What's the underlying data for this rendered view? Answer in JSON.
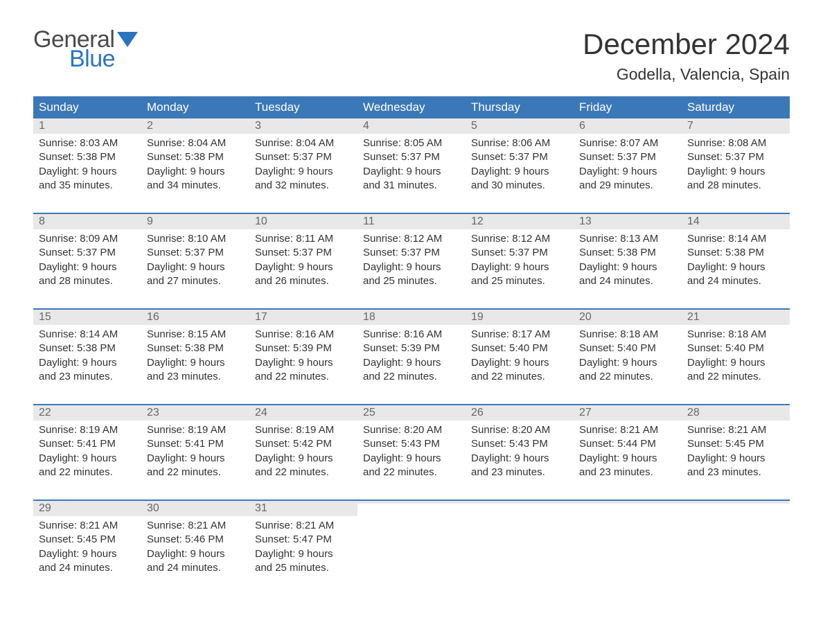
{
  "logo": {
    "word_general": "General",
    "word_blue": "Blue",
    "flag_color": "#2a74bf",
    "general_color": "#4a4a4a"
  },
  "title": {
    "month": "December 2024",
    "location": "Godella, Valencia, Spain"
  },
  "colors": {
    "header_bg": "#3b78b8",
    "header_text": "#ffffff",
    "daynum_bg": "#e8e8e8",
    "daynum_text": "#666666",
    "body_text": "#333333",
    "week_border": "#3b78b8",
    "page_bg": "#ffffff"
  },
  "fonts": {
    "title_size_pt": 32,
    "location_size_pt": 17,
    "dayheader_size_pt": 13,
    "daynum_size_pt": 12,
    "body_size_pt": 11
  },
  "day_names": [
    "Sunday",
    "Monday",
    "Tuesday",
    "Wednesday",
    "Thursday",
    "Friday",
    "Saturday"
  ],
  "weeks": [
    [
      {
        "num": "1",
        "sunrise": "Sunrise: 8:03 AM",
        "sunset": "Sunset: 5:38 PM",
        "d1": "Daylight: 9 hours",
        "d2": "and 35 minutes."
      },
      {
        "num": "2",
        "sunrise": "Sunrise: 8:04 AM",
        "sunset": "Sunset: 5:38 PM",
        "d1": "Daylight: 9 hours",
        "d2": "and 34 minutes."
      },
      {
        "num": "3",
        "sunrise": "Sunrise: 8:04 AM",
        "sunset": "Sunset: 5:37 PM",
        "d1": "Daylight: 9 hours",
        "d2": "and 32 minutes."
      },
      {
        "num": "4",
        "sunrise": "Sunrise: 8:05 AM",
        "sunset": "Sunset: 5:37 PM",
        "d1": "Daylight: 9 hours",
        "d2": "and 31 minutes."
      },
      {
        "num": "5",
        "sunrise": "Sunrise: 8:06 AM",
        "sunset": "Sunset: 5:37 PM",
        "d1": "Daylight: 9 hours",
        "d2": "and 30 minutes."
      },
      {
        "num": "6",
        "sunrise": "Sunrise: 8:07 AM",
        "sunset": "Sunset: 5:37 PM",
        "d1": "Daylight: 9 hours",
        "d2": "and 29 minutes."
      },
      {
        "num": "7",
        "sunrise": "Sunrise: 8:08 AM",
        "sunset": "Sunset: 5:37 PM",
        "d1": "Daylight: 9 hours",
        "d2": "and 28 minutes."
      }
    ],
    [
      {
        "num": "8",
        "sunrise": "Sunrise: 8:09 AM",
        "sunset": "Sunset: 5:37 PM",
        "d1": "Daylight: 9 hours",
        "d2": "and 28 minutes."
      },
      {
        "num": "9",
        "sunrise": "Sunrise: 8:10 AM",
        "sunset": "Sunset: 5:37 PM",
        "d1": "Daylight: 9 hours",
        "d2": "and 27 minutes."
      },
      {
        "num": "10",
        "sunrise": "Sunrise: 8:11 AM",
        "sunset": "Sunset: 5:37 PM",
        "d1": "Daylight: 9 hours",
        "d2": "and 26 minutes."
      },
      {
        "num": "11",
        "sunrise": "Sunrise: 8:12 AM",
        "sunset": "Sunset: 5:37 PM",
        "d1": "Daylight: 9 hours",
        "d2": "and 25 minutes."
      },
      {
        "num": "12",
        "sunrise": "Sunrise: 8:12 AM",
        "sunset": "Sunset: 5:37 PM",
        "d1": "Daylight: 9 hours",
        "d2": "and 25 minutes."
      },
      {
        "num": "13",
        "sunrise": "Sunrise: 8:13 AM",
        "sunset": "Sunset: 5:38 PM",
        "d1": "Daylight: 9 hours",
        "d2": "and 24 minutes."
      },
      {
        "num": "14",
        "sunrise": "Sunrise: 8:14 AM",
        "sunset": "Sunset: 5:38 PM",
        "d1": "Daylight: 9 hours",
        "d2": "and 24 minutes."
      }
    ],
    [
      {
        "num": "15",
        "sunrise": "Sunrise: 8:14 AM",
        "sunset": "Sunset: 5:38 PM",
        "d1": "Daylight: 9 hours",
        "d2": "and 23 minutes."
      },
      {
        "num": "16",
        "sunrise": "Sunrise: 8:15 AM",
        "sunset": "Sunset: 5:38 PM",
        "d1": "Daylight: 9 hours",
        "d2": "and 23 minutes."
      },
      {
        "num": "17",
        "sunrise": "Sunrise: 8:16 AM",
        "sunset": "Sunset: 5:39 PM",
        "d1": "Daylight: 9 hours",
        "d2": "and 22 minutes."
      },
      {
        "num": "18",
        "sunrise": "Sunrise: 8:16 AM",
        "sunset": "Sunset: 5:39 PM",
        "d1": "Daylight: 9 hours",
        "d2": "and 22 minutes."
      },
      {
        "num": "19",
        "sunrise": "Sunrise: 8:17 AM",
        "sunset": "Sunset: 5:40 PM",
        "d1": "Daylight: 9 hours",
        "d2": "and 22 minutes."
      },
      {
        "num": "20",
        "sunrise": "Sunrise: 8:18 AM",
        "sunset": "Sunset: 5:40 PM",
        "d1": "Daylight: 9 hours",
        "d2": "and 22 minutes."
      },
      {
        "num": "21",
        "sunrise": "Sunrise: 8:18 AM",
        "sunset": "Sunset: 5:40 PM",
        "d1": "Daylight: 9 hours",
        "d2": "and 22 minutes."
      }
    ],
    [
      {
        "num": "22",
        "sunrise": "Sunrise: 8:19 AM",
        "sunset": "Sunset: 5:41 PM",
        "d1": "Daylight: 9 hours",
        "d2": "and 22 minutes."
      },
      {
        "num": "23",
        "sunrise": "Sunrise: 8:19 AM",
        "sunset": "Sunset: 5:41 PM",
        "d1": "Daylight: 9 hours",
        "d2": "and 22 minutes."
      },
      {
        "num": "24",
        "sunrise": "Sunrise: 8:19 AM",
        "sunset": "Sunset: 5:42 PM",
        "d1": "Daylight: 9 hours",
        "d2": "and 22 minutes."
      },
      {
        "num": "25",
        "sunrise": "Sunrise: 8:20 AM",
        "sunset": "Sunset: 5:43 PM",
        "d1": "Daylight: 9 hours",
        "d2": "and 22 minutes."
      },
      {
        "num": "26",
        "sunrise": "Sunrise: 8:20 AM",
        "sunset": "Sunset: 5:43 PM",
        "d1": "Daylight: 9 hours",
        "d2": "and 23 minutes."
      },
      {
        "num": "27",
        "sunrise": "Sunrise: 8:21 AM",
        "sunset": "Sunset: 5:44 PM",
        "d1": "Daylight: 9 hours",
        "d2": "and 23 minutes."
      },
      {
        "num": "28",
        "sunrise": "Sunrise: 8:21 AM",
        "sunset": "Sunset: 5:45 PM",
        "d1": "Daylight: 9 hours",
        "d2": "and 23 minutes."
      }
    ],
    [
      {
        "num": "29",
        "sunrise": "Sunrise: 8:21 AM",
        "sunset": "Sunset: 5:45 PM",
        "d1": "Daylight: 9 hours",
        "d2": "and 24 minutes."
      },
      {
        "num": "30",
        "sunrise": "Sunrise: 8:21 AM",
        "sunset": "Sunset: 5:46 PM",
        "d1": "Daylight: 9 hours",
        "d2": "and 24 minutes."
      },
      {
        "num": "31",
        "sunrise": "Sunrise: 8:21 AM",
        "sunset": "Sunset: 5:47 PM",
        "d1": "Daylight: 9 hours",
        "d2": "and 25 minutes."
      },
      {
        "empty": true
      },
      {
        "empty": true
      },
      {
        "empty": true
      },
      {
        "empty": true
      }
    ]
  ]
}
